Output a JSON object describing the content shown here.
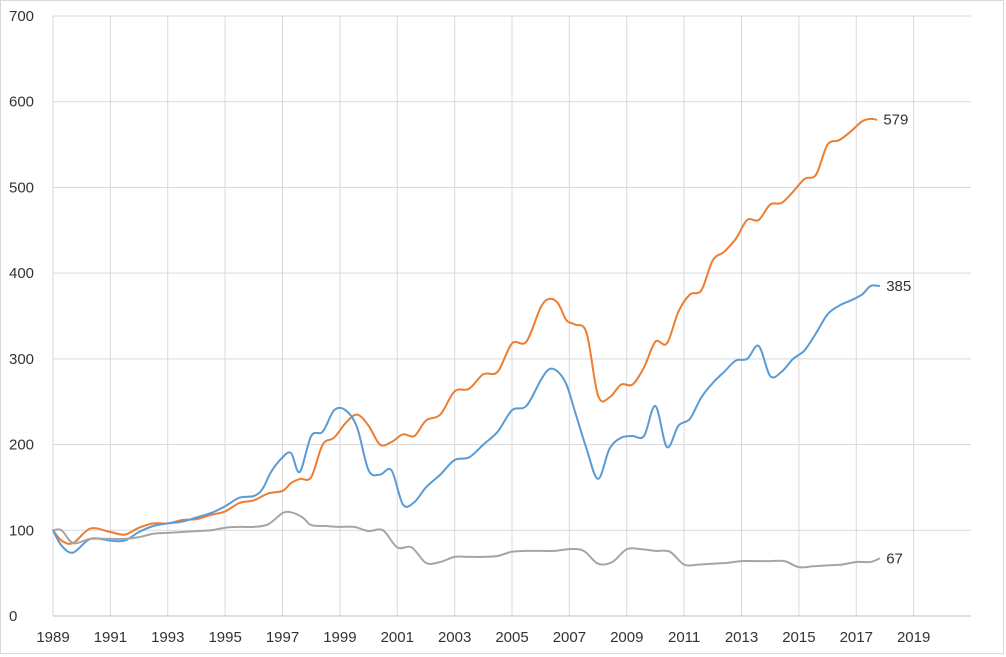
{
  "chart_data": {
    "type": "line",
    "title": "",
    "xlabel": "",
    "ylabel": "",
    "xlim": [
      1989,
      2021
    ],
    "ylim": [
      0,
      700
    ],
    "x_ticks": [
      1989,
      1991,
      1993,
      1995,
      1997,
      1999,
      2001,
      2003,
      2005,
      2007,
      2009,
      2011,
      2013,
      2015,
      2017,
      2019
    ],
    "y_ticks": [
      0,
      100,
      200,
      300,
      400,
      500,
      600,
      700
    ],
    "grid": true,
    "legend": "none",
    "series": [
      {
        "color": "#ed7d31",
        "end_label": "579",
        "x": [
          1989,
          1989.3,
          1989.7,
          1990.3,
          1991,
          1991.5,
          1992,
          1992.5,
          1993,
          1993.5,
          1994,
          1994.5,
          1995,
          1995.5,
          1996,
          1996.5,
          1997,
          1997.3,
          1997.6,
          1998,
          1998.4,
          1998.8,
          1999.2,
          1999.6,
          2000,
          2000.4,
          2000.8,
          2001.2,
          2001.6,
          2002,
          2002.5,
          2003,
          2003.5,
          2004,
          2004.5,
          2005,
          2005.5,
          2006,
          2006.3,
          2006.6,
          2006.9,
          2007.2,
          2007.6,
          2008,
          2008.4,
          2008.8,
          2009.2,
          2009.6,
          2010,
          2010.4,
          2010.8,
          2011.2,
          2011.6,
          2012,
          2012.4,
          2012.8,
          2013.2,
          2013.6,
          2014,
          2014.4,
          2014.8,
          2015.2,
          2015.6,
          2016,
          2016.4,
          2016.8,
          2017.2,
          2017.5,
          2017.7
        ],
        "y": [
          100,
          88,
          85,
          102,
          98,
          95,
          103,
          108,
          108,
          112,
          113,
          118,
          122,
          132,
          135,
          143,
          146,
          155,
          160,
          162,
          200,
          208,
          225,
          235,
          222,
          200,
          203,
          212,
          210,
          228,
          235,
          262,
          265,
          282,
          285,
          318,
          320,
          360,
          370,
          365,
          345,
          340,
          330,
          257,
          255,
          270,
          270,
          290,
          320,
          318,
          355,
          375,
          380,
          415,
          425,
          440,
          462,
          462,
          480,
          482,
          495,
          510,
          515,
          550,
          555,
          565,
          577,
          580,
          579
        ]
      },
      {
        "color": "#5b9bd5",
        "end_label": "385",
        "x": [
          1989,
          1989.3,
          1989.7,
          1990.3,
          1991,
          1991.5,
          1992,
          1992.5,
          1993,
          1993.5,
          1994,
          1994.5,
          1995,
          1995.5,
          1996,
          1996.3,
          1996.6,
          1997,
          1997.3,
          1997.6,
          1998,
          1998.4,
          1998.8,
          1999.2,
          1999.6,
          2000,
          2000.4,
          2000.8,
          2001.2,
          2001.6,
          2002,
          2002.5,
          2003,
          2003.5,
          2004,
          2004.5,
          2005,
          2005.5,
          2006,
          2006.3,
          2006.6,
          2006.9,
          2007.2,
          2007.6,
          2008,
          2008.4,
          2008.8,
          2009.2,
          2009.6,
          2010,
          2010.4,
          2010.8,
          2011.2,
          2011.6,
          2012,
          2012.4,
          2012.8,
          2013.2,
          2013.6,
          2014,
          2014.4,
          2014.8,
          2015.2,
          2015.6,
          2016,
          2016.4,
          2016.8,
          2017.2,
          2017.5,
          2017.8
        ],
        "y": [
          100,
          82,
          74,
          90,
          88,
          88,
          98,
          105,
          108,
          110,
          115,
          120,
          128,
          138,
          140,
          148,
          168,
          185,
          190,
          168,
          210,
          215,
          240,
          240,
          220,
          170,
          165,
          170,
          130,
          133,
          150,
          165,
          182,
          185,
          200,
          215,
          240,
          245,
          275,
          288,
          285,
          270,
          238,
          195,
          160,
          195,
          208,
          210,
          210,
          245,
          197,
          222,
          230,
          255,
          272,
          285,
          298,
          300,
          315,
          280,
          285,
          300,
          310,
          330,
          352,
          362,
          368,
          375,
          385,
          385
        ]
      },
      {
        "color": "#a5a5a5",
        "end_label": "67",
        "x": [
          1989,
          1989.3,
          1989.7,
          1990.3,
          1991,
          1991.5,
          1992,
          1992.5,
          1993,
          1993.5,
          1994,
          1994.5,
          1995,
          1995.5,
          1996,
          1996.5,
          1997,
          1997.3,
          1997.7,
          1998,
          1998.5,
          1999,
          1999.5,
          2000,
          2000.5,
          2001,
          2001.5,
          2002,
          2002.5,
          2003,
          2003.5,
          2004,
          2004.5,
          2005,
          2005.5,
          2006,
          2006.5,
          2007,
          2007.5,
          2008,
          2008.5,
          2009,
          2009.5,
          2010,
          2010.5,
          2011,
          2011.5,
          2012,
          2012.5,
          2013,
          2013.5,
          2014,
          2014.5,
          2015,
          2015.5,
          2016,
          2016.5,
          2017,
          2017.5,
          2017.8
        ],
        "y": [
          100,
          100,
          85,
          90,
          90,
          90,
          92,
          96,
          97,
          98,
          99,
          100,
          103,
          104,
          104,
          107,
          120,
          121,
          115,
          106,
          105,
          104,
          104,
          99,
          100,
          80,
          80,
          62,
          63,
          69,
          69,
          69,
          70,
          75,
          76,
          76,
          76,
          78,
          76,
          61,
          63,
          78,
          78,
          76,
          75,
          60,
          60,
          61,
          62,
          64,
          64,
          64,
          64,
          57,
          58,
          59,
          60,
          63,
          63,
          67
        ]
      }
    ]
  }
}
